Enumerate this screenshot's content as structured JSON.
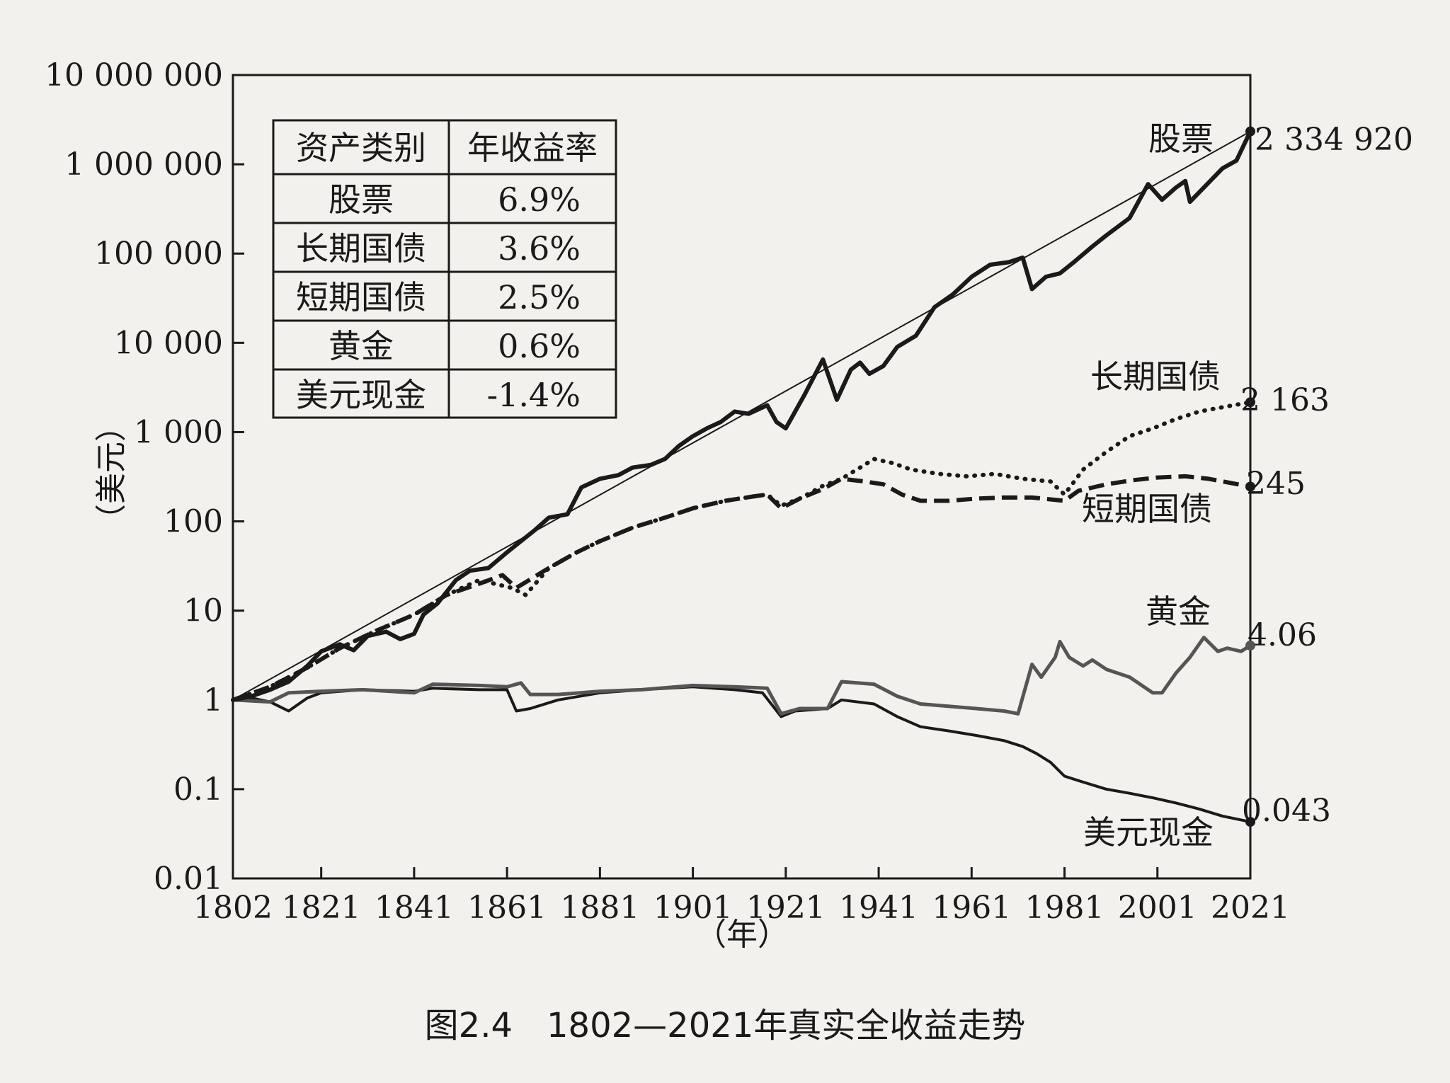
{
  "caption": "图2.4　1802—2021年真实全收益走势",
  "chart_data": {
    "type": "line",
    "yscale": "log",
    "ylim": [
      0.01,
      10000000
    ],
    "xlim": [
      1802,
      2021
    ],
    "ylabel": "（美元）",
    "xlabel": "（年）",
    "y_ticks": [
      {
        "value": 10000000,
        "label": "10 000 000"
      },
      {
        "value": 1000000,
        "label": "1 000 000"
      },
      {
        "value": 100000,
        "label": "100 000"
      },
      {
        "value": 10000,
        "label": "10 000"
      },
      {
        "value": 1000,
        "label": "1 000"
      },
      {
        "value": 100,
        "label": "100"
      },
      {
        "value": 10,
        "label": "10"
      },
      {
        "value": 1,
        "label": "1"
      },
      {
        "value": 0.1,
        "label": "0.1"
      },
      {
        "value": 0.01,
        "label": "0.01"
      }
    ],
    "x_ticks": [
      {
        "value": 1802,
        "label": "1802"
      },
      {
        "value": 1821,
        "label": "1821"
      },
      {
        "value": 1841,
        "label": "1841"
      },
      {
        "value": 1861,
        "label": "1861"
      },
      {
        "value": 1881,
        "label": "1881"
      },
      {
        "value": 1901,
        "label": "1901"
      },
      {
        "value": 1921,
        "label": "1921"
      },
      {
        "value": 1941,
        "label": "1941"
      },
      {
        "value": 1961,
        "label": "1961"
      },
      {
        "value": 1981,
        "label": "1981"
      },
      {
        "value": 2001,
        "label": "2001"
      },
      {
        "value": 2021,
        "label": "2021"
      }
    ],
    "series": [
      {
        "name": "股票",
        "end_label": "2 334 920",
        "style": "thick",
        "color": "#1a1a1a",
        "points": [
          [
            1802,
            1
          ],
          [
            1806,
            1.1
          ],
          [
            1810,
            1.3
          ],
          [
            1814,
            1.6
          ],
          [
            1818,
            2.4
          ],
          [
            1821,
            3.5
          ],
          [
            1825,
            4.2
          ],
          [
            1828,
            3.6
          ],
          [
            1831,
            5.2
          ],
          [
            1835,
            5.8
          ],
          [
            1838,
            4.8
          ],
          [
            1841,
            5.5
          ],
          [
            1843,
            9
          ],
          [
            1846,
            12
          ],
          [
            1850,
            22
          ],
          [
            1853,
            28
          ],
          [
            1857,
            30
          ],
          [
            1861,
            45
          ],
          [
            1864,
            60
          ],
          [
            1867,
            80
          ],
          [
            1870,
            110
          ],
          [
            1874,
            120
          ],
          [
            1877,
            240
          ],
          [
            1881,
            300
          ],
          [
            1885,
            330
          ],
          [
            1888,
            400
          ],
          [
            1892,
            430
          ],
          [
            1895,
            500
          ],
          [
            1898,
            700
          ],
          [
            1901,
            900
          ],
          [
            1904,
            1100
          ],
          [
            1907,
            1300
          ],
          [
            1910,
            1700
          ],
          [
            1913,
            1600
          ],
          [
            1917,
            2000
          ],
          [
            1919,
            1300
          ],
          [
            1921,
            1100
          ],
          [
            1925,
            2600
          ],
          [
            1929,
            6500
          ],
          [
            1932,
            2300
          ],
          [
            1935,
            5000
          ],
          [
            1937,
            6000
          ],
          [
            1939,
            4500
          ],
          [
            1942,
            5500
          ],
          [
            1945,
            9000
          ],
          [
            1949,
            12000
          ],
          [
            1953,
            25000
          ],
          [
            1957,
            35000
          ],
          [
            1961,
            55000
          ],
          [
            1965,
            75000
          ],
          [
            1969,
            80000
          ],
          [
            1972,
            90000
          ],
          [
            1974,
            40000
          ],
          [
            1977,
            55000
          ],
          [
            1980,
            60000
          ],
          [
            1983,
            80000
          ],
          [
            1987,
            120000
          ],
          [
            1990,
            160000
          ],
          [
            1995,
            250000
          ],
          [
            1999,
            600000
          ],
          [
            2002,
            400000
          ],
          [
            2005,
            550000
          ],
          [
            2007,
            650000
          ],
          [
            2008,
            380000
          ],
          [
            2011,
            550000
          ],
          [
            2015,
            900000
          ],
          [
            2018,
            1100000
          ],
          [
            2021,
            2334920
          ]
        ]
      },
      {
        "name": "长期国债",
        "end_label": "2 163",
        "style": "dotted",
        "color": "#1a1a1a",
        "points": [
          [
            1802,
            1
          ],
          [
            1810,
            1.4
          ],
          [
            1818,
            2.3
          ],
          [
            1825,
            3.8
          ],
          [
            1833,
            6
          ],
          [
            1841,
            9
          ],
          [
            1848,
            15
          ],
          [
            1855,
            22
          ],
          [
            1862,
            18
          ],
          [
            1865,
            15
          ],
          [
            1870,
            30
          ],
          [
            1876,
            45
          ],
          [
            1881,
            60
          ],
          [
            1888,
            85
          ],
          [
            1895,
            110
          ],
          [
            1901,
            140
          ],
          [
            1908,
            170
          ],
          [
            1914,
            190
          ],
          [
            1917,
            200
          ],
          [
            1920,
            150
          ],
          [
            1924,
            180
          ],
          [
            1929,
            250
          ],
          [
            1933,
            300
          ],
          [
            1937,
            400
          ],
          [
            1940,
            500
          ],
          [
            1944,
            450
          ],
          [
            1948,
            380
          ],
          [
            1954,
            340
          ],
          [
            1960,
            320
          ],
          [
            1966,
            340
          ],
          [
            1972,
            300
          ],
          [
            1978,
            280
          ],
          [
            1981,
            200
          ],
          [
            1985,
            380
          ],
          [
            1990,
            600
          ],
          [
            1995,
            900
          ],
          [
            2000,
            1100
          ],
          [
            2005,
            1400
          ],
          [
            2010,
            1700
          ],
          [
            2015,
            1900
          ],
          [
            2021,
            2163
          ]
        ]
      },
      {
        "name": "短期国债",
        "end_label": "245",
        "style": "dashed",
        "color": "#1a1a1a",
        "points": [
          [
            1802,
            1
          ],
          [
            1810,
            1.4
          ],
          [
            1818,
            2.3
          ],
          [
            1825,
            3.8
          ],
          [
            1833,
            6
          ],
          [
            1841,
            9
          ],
          [
            1848,
            15
          ],
          [
            1855,
            20
          ],
          [
            1860,
            25
          ],
          [
            1863,
            18
          ],
          [
            1870,
            30
          ],
          [
            1876,
            45
          ],
          [
            1881,
            60
          ],
          [
            1888,
            85
          ],
          [
            1895,
            110
          ],
          [
            1901,
            140
          ],
          [
            1908,
            170
          ],
          [
            1914,
            190
          ],
          [
            1917,
            200
          ],
          [
            1920,
            140
          ],
          [
            1924,
            180
          ],
          [
            1929,
            230
          ],
          [
            1933,
            300
          ],
          [
            1938,
            280
          ],
          [
            1942,
            260
          ],
          [
            1946,
            200
          ],
          [
            1950,
            170
          ],
          [
            1956,
            170
          ],
          [
            1962,
            180
          ],
          [
            1968,
            185
          ],
          [
            1974,
            185
          ],
          [
            1981,
            170
          ],
          [
            1984,
            220
          ],
          [
            1990,
            260
          ],
          [
            1996,
            290
          ],
          [
            2001,
            310
          ],
          [
            2007,
            320
          ],
          [
            2012,
            300
          ],
          [
            2021,
            245
          ]
        ]
      },
      {
        "name": "黄金",
        "end_label": "4.06",
        "style": "solid-gray",
        "color": "#555555",
        "points": [
          [
            1802,
            1
          ],
          [
            1810,
            0.95
          ],
          [
            1814,
            1.2
          ],
          [
            1821,
            1.25
          ],
          [
            1830,
            1.3
          ],
          [
            1841,
            1.2
          ],
          [
            1845,
            1.5
          ],
          [
            1855,
            1.45
          ],
          [
            1861,
            1.4
          ],
          [
            1864,
            1.55
          ],
          [
            1866,
            1.15
          ],
          [
            1872,
            1.15
          ],
          [
            1881,
            1.25
          ],
          [
            1890,
            1.3
          ],
          [
            1901,
            1.45
          ],
          [
            1910,
            1.4
          ],
          [
            1917,
            1.35
          ],
          [
            1920,
            0.7
          ],
          [
            1924,
            0.8
          ],
          [
            1930,
            0.8
          ],
          [
            1933,
            1.6
          ],
          [
            1940,
            1.5
          ],
          [
            1945,
            1.1
          ],
          [
            1950,
            0.9
          ],
          [
            1956,
            0.85
          ],
          [
            1962,
            0.8
          ],
          [
            1968,
            0.75
          ],
          [
            1971,
            0.7
          ],
          [
            1974,
            2.5
          ],
          [
            1976,
            1.8
          ],
          [
            1979,
            3
          ],
          [
            1980,
            4.5
          ],
          [
            1982,
            3
          ],
          [
            1985,
            2.4
          ],
          [
            1987,
            2.8
          ],
          [
            1990,
            2.2
          ],
          [
            1995,
            1.8
          ],
          [
            2000,
            1.2
          ],
          [
            2002,
            1.2
          ],
          [
            2005,
            2
          ],
          [
            2008,
            3
          ],
          [
            2011,
            5
          ],
          [
            2014,
            3.5
          ],
          [
            2016,
            3.8
          ],
          [
            2019,
            3.5
          ],
          [
            2021,
            4.06
          ]
        ]
      },
      {
        "name": "美元现金",
        "end_label": "0.043",
        "style": "solid-thin",
        "color": "#1a1a1a",
        "points": [
          [
            1802,
            1
          ],
          [
            1806,
            1.05
          ],
          [
            1810,
            0.95
          ],
          [
            1814,
            0.75
          ],
          [
            1818,
            1.05
          ],
          [
            1821,
            1.2
          ],
          [
            1830,
            1.3
          ],
          [
            1841,
            1.25
          ],
          [
            1845,
            1.35
          ],
          [
            1855,
            1.3
          ],
          [
            1861,
            1.3
          ],
          [
            1863,
            0.75
          ],
          [
            1866,
            0.8
          ],
          [
            1872,
            1
          ],
          [
            1881,
            1.2
          ],
          [
            1890,
            1.3
          ],
          [
            1901,
            1.4
          ],
          [
            1910,
            1.3
          ],
          [
            1916,
            1.2
          ],
          [
            1920,
            0.65
          ],
          [
            1923,
            0.75
          ],
          [
            1930,
            0.8
          ],
          [
            1933,
            1
          ],
          [
            1940,
            0.9
          ],
          [
            1945,
            0.65
          ],
          [
            1950,
            0.5
          ],
          [
            1956,
            0.45
          ],
          [
            1962,
            0.4
          ],
          [
            1968,
            0.35
          ],
          [
            1972,
            0.3
          ],
          [
            1975,
            0.25
          ],
          [
            1978,
            0.2
          ],
          [
            1981,
            0.14
          ],
          [
            1985,
            0.12
          ],
          [
            1990,
            0.1
          ],
          [
            1995,
            0.09
          ],
          [
            2000,
            0.08
          ],
          [
            2005,
            0.07
          ],
          [
            2010,
            0.06
          ],
          [
            2015,
            0.05
          ],
          [
            2021,
            0.043
          ]
        ]
      },
      {
        "name": "trend",
        "style": "trend",
        "color": "#1a1a1a",
        "points": [
          [
            1802,
            1
          ],
          [
            2021,
            2334920
          ]
        ]
      }
    ],
    "table": {
      "headers": [
        "资产类别",
        "年收益率"
      ],
      "rows": [
        [
          "股票",
          "6.9%"
        ],
        [
          "长期国债",
          "3.6%"
        ],
        [
          "短期国债",
          "2.5%"
        ],
        [
          "黄金",
          "0.6%"
        ],
        [
          "美元现金",
          "-1.4%"
        ]
      ]
    }
  }
}
